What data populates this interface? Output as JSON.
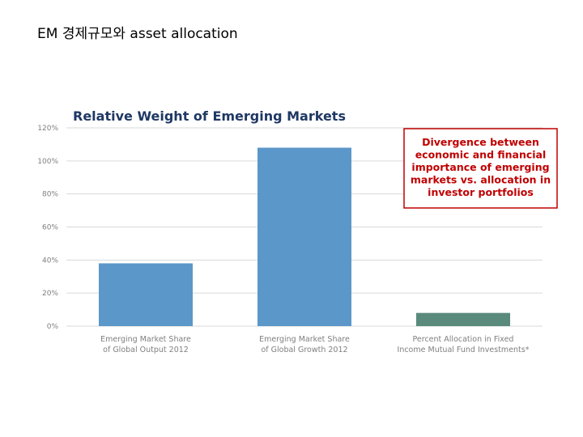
{
  "slide": {
    "title": "EM 경제규모와 asset allocation"
  },
  "chart_data": {
    "type": "bar",
    "title": "Relative Weight of Emerging Markets",
    "categories": [
      [
        "Emerging Market Share",
        "of Global Output 2012"
      ],
      [
        "Emerging Market Share",
        "of Global Growth 2012"
      ],
      [
        "Percent Allocation in Fixed",
        "Income Mutual Fund Investments*"
      ]
    ],
    "values": [
      38,
      108,
      8
    ],
    "bar_colors": [
      "#5b97c9",
      "#5b97c9",
      "#5a8a7c"
    ],
    "ylim": [
      0,
      120
    ],
    "yticks": [
      0,
      20,
      40,
      60,
      80,
      100,
      120
    ],
    "ytick_labels": [
      "0%",
      "20%",
      "40%",
      "60%",
      "80%",
      "100%",
      "120%"
    ],
    "grid": true,
    "xlabel": "",
    "ylabel": "",
    "callout": {
      "lines": [
        "Divergence between",
        "economic and financial",
        "importance of emerging",
        "markets vs. allocation in",
        "investor portfolios"
      ],
      "border_color": "#c00000",
      "text_color": "#c00000"
    },
    "colors": {
      "grid": "#d9d9d9",
      "title": "#1f3864",
      "axis_text": "#7f7f7f"
    }
  }
}
